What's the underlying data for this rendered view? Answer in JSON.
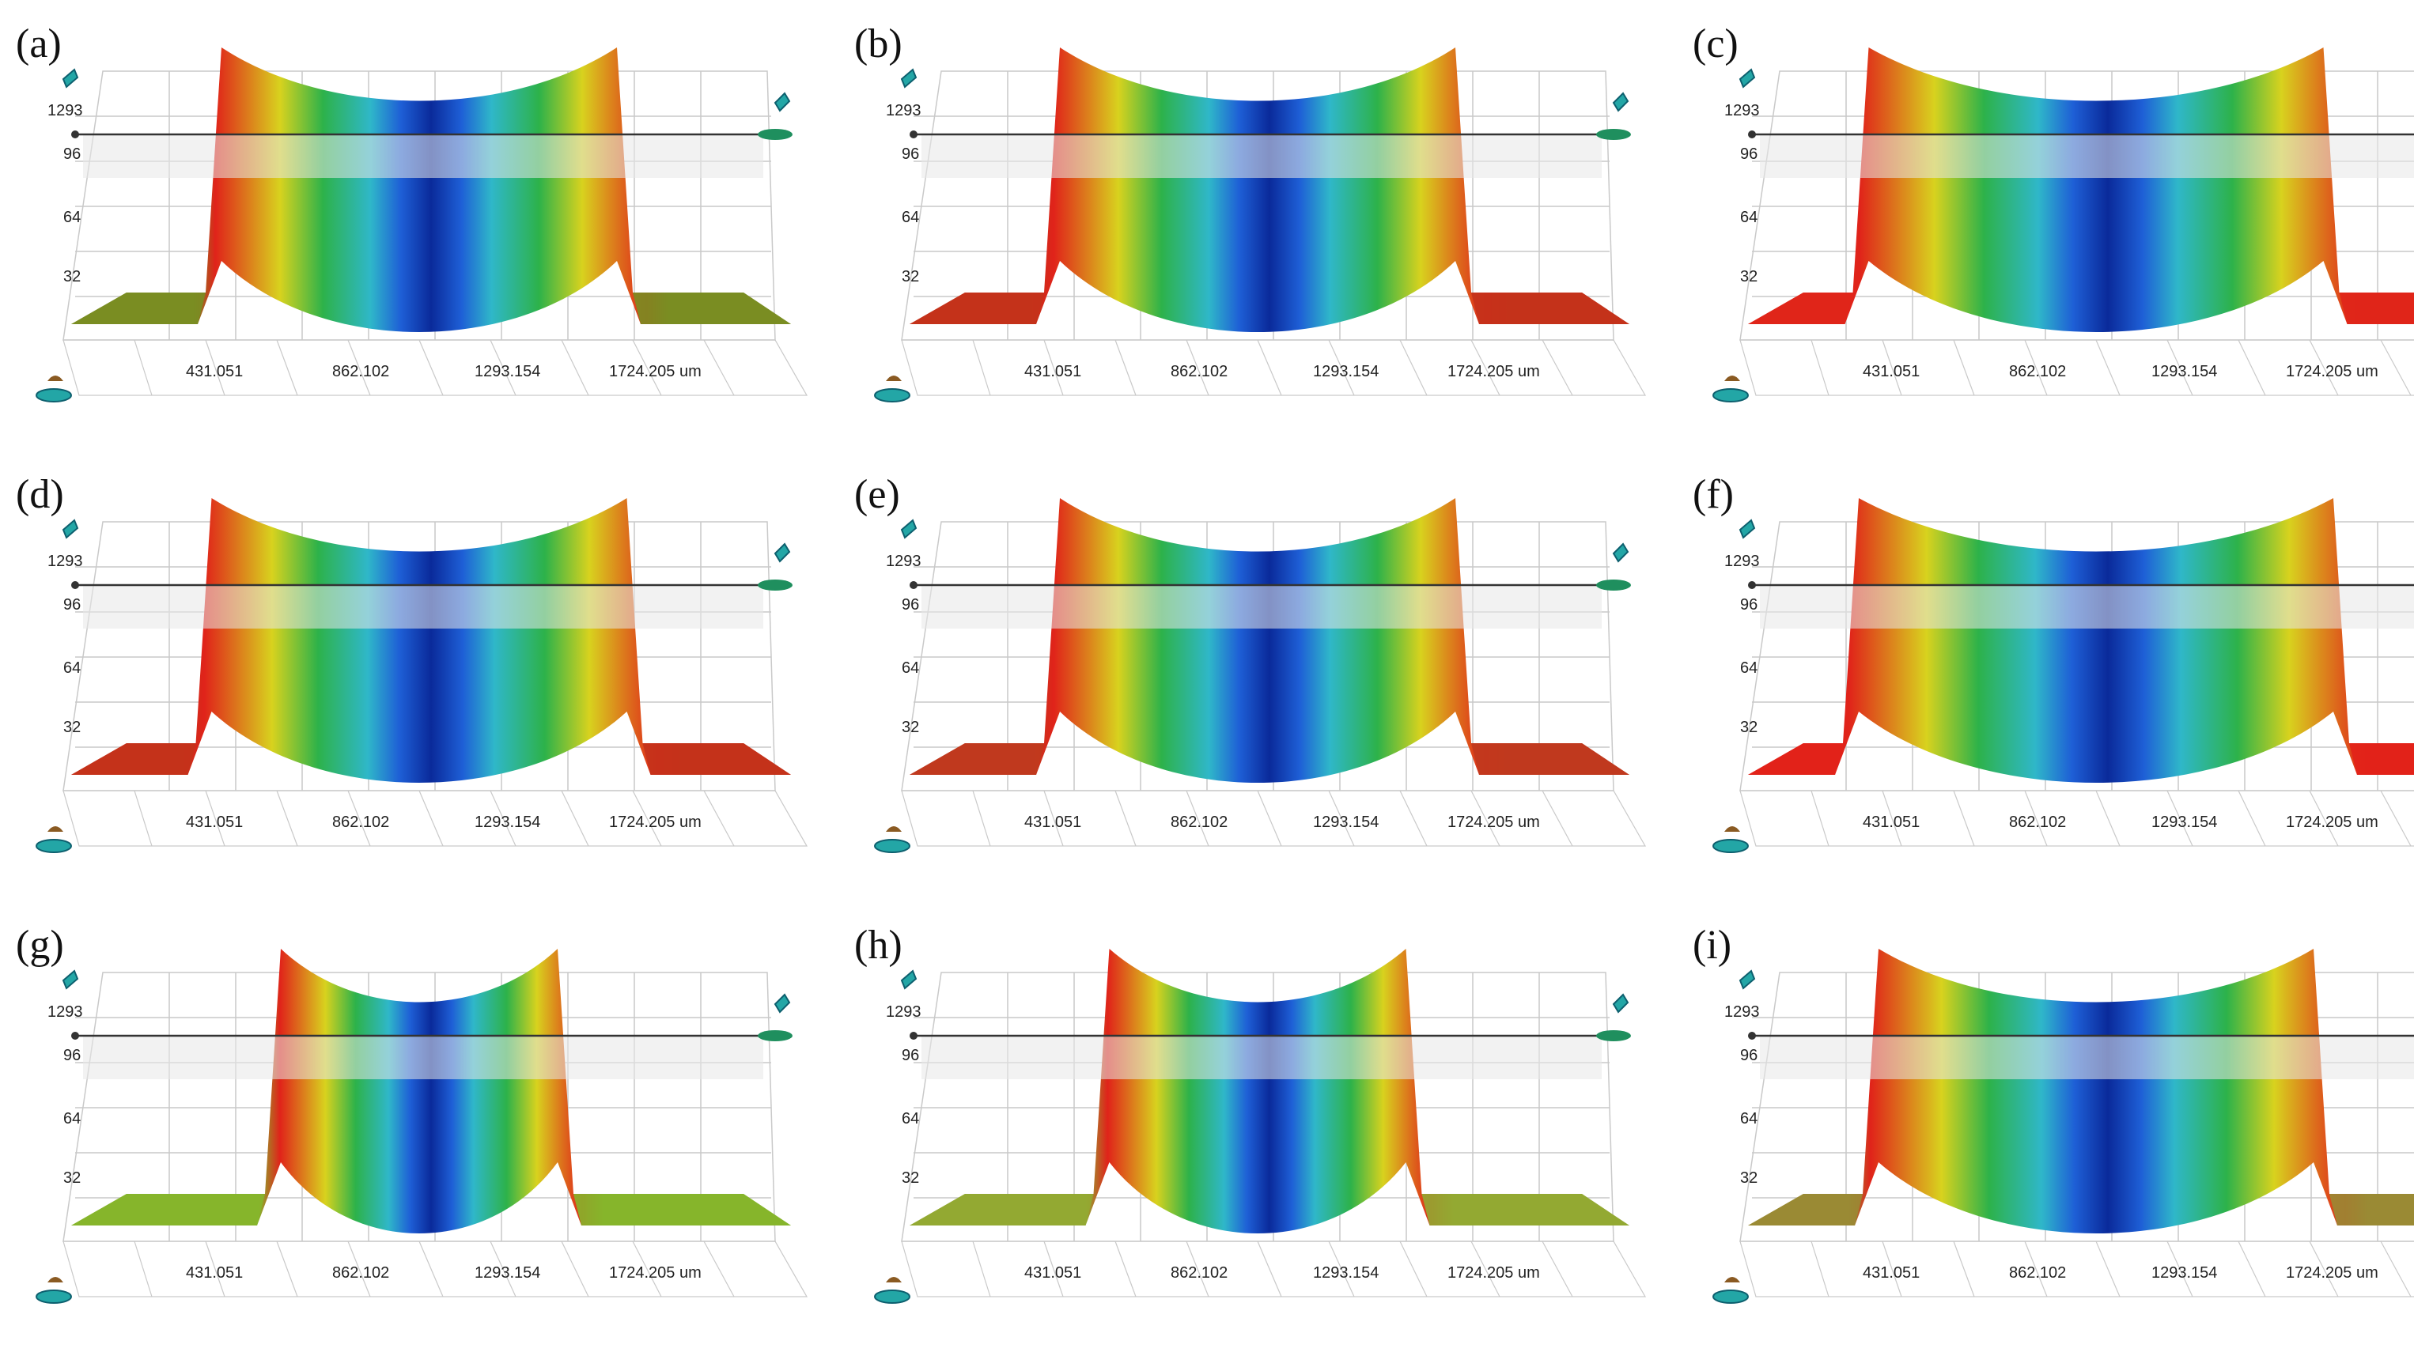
{
  "figure": {
    "panels": [
      {
        "label": "(a)",
        "base": "#7a8d22",
        "y_ticks": [
          "1293",
          "96",
          "64",
          "32"
        ],
        "x_ticks": [
          "431.051",
          "862.102",
          "1293.154",
          "1724.205 um"
        ]
      },
      {
        "label": "(b)",
        "base": "#c4321b",
        "y_ticks": [
          "1293",
          "96",
          "64",
          "32"
        ],
        "x_ticks": [
          "431.051",
          "862.102",
          "1293.154",
          "1724.205 um"
        ]
      },
      {
        "label": "(c)",
        "base": "#e0261a",
        "y_ticks": [
          "1293",
          "96",
          "64",
          "32"
        ],
        "x_ticks": [
          "431.051",
          "862.102",
          "1293.154",
          "1724.205 um"
        ]
      },
      {
        "label": "(d)",
        "base": "#c4321b",
        "y_ticks": [
          "1293",
          "96",
          "64",
          "32"
        ],
        "x_ticks": [
          "431.051",
          "862.102",
          "1293.154",
          "1724.205 um"
        ]
      },
      {
        "label": "(e)",
        "base": "#c03a1e",
        "y_ticks": [
          "1293",
          "96",
          "64",
          "32"
        ],
        "x_ticks": [
          "431.051",
          "862.102",
          "1293.154",
          "1724.205 um"
        ]
      },
      {
        "label": "(f)",
        "base": "#e2221a",
        "y_ticks": [
          "1293",
          "96",
          "64",
          "32"
        ],
        "x_ticks": [
          "431.051",
          "862.102",
          "1293.154",
          "1724.205 um"
        ]
      },
      {
        "label": "(g)",
        "base": "#86b52b",
        "y_ticks": [
          "1293",
          "96",
          "64",
          "32"
        ],
        "x_ticks": [
          "431.051",
          "862.102",
          "1293.154",
          "1724.205 um"
        ]
      },
      {
        "label": "(h)",
        "base": "#93a832",
        "y_ticks": [
          "1293",
          "96",
          "64",
          "32"
        ],
        "x_ticks": [
          "431.051",
          "862.102",
          "1293.154",
          "1724.205 um"
        ]
      },
      {
        "label": "(i)",
        "base": "#9a8a34",
        "y_ticks": [
          "1293",
          "96",
          "64",
          "32"
        ],
        "x_ticks": [
          "431.051",
          "862.102",
          "1293.154",
          "1724.205 um"
        ]
      }
    ],
    "colors": {
      "deep_blue": "#0a2a9a",
      "blue": "#1e5fd6",
      "cyan": "#2fb7c9",
      "green": "#2db24a",
      "yellow": "#d8d21e",
      "red": "#e0231a",
      "plane": "#e8e8e8",
      "grid": "#c9c9c9",
      "line": "#333333"
    }
  }
}
